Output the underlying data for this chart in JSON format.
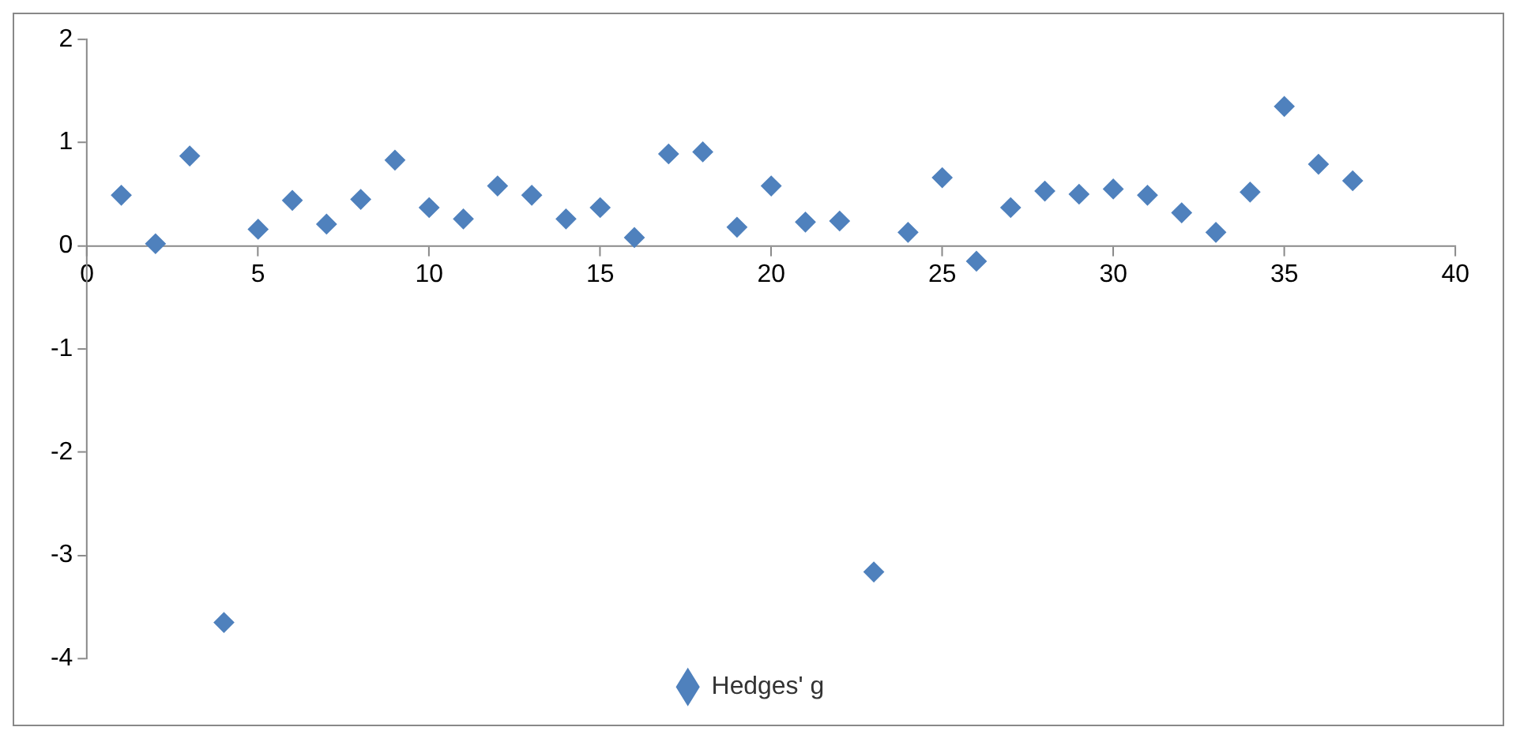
{
  "chart_data": {
    "type": "scatter",
    "x": [
      1,
      2,
      3,
      4,
      5,
      6,
      7,
      8,
      9,
      10,
      11,
      12,
      13,
      14,
      15,
      16,
      17,
      18,
      19,
      20,
      21,
      22,
      23,
      24,
      25,
      26,
      27,
      28,
      29,
      30,
      31,
      32,
      33,
      34,
      35,
      36,
      37
    ],
    "series": [
      {
        "name": "Hedges' g",
        "color": "#4f81bd",
        "values": [
          0.49,
          0.02,
          0.87,
          -3.65,
          0.16,
          0.44,
          0.21,
          0.45,
          0.83,
          0.37,
          0.26,
          0.58,
          0.49,
          0.26,
          0.37,
          0.08,
          0.89,
          0.91,
          0.18,
          0.58,
          0.23,
          0.24,
          -3.16,
          0.13,
          0.66,
          -0.15,
          0.37,
          0.53,
          0.5,
          0.55,
          0.49,
          0.32,
          0.13,
          0.52,
          1.35,
          0.79,
          0.63
        ]
      }
    ],
    "xlim": [
      0,
      40
    ],
    "xticks": [
      0,
      5,
      10,
      15,
      20,
      25,
      30,
      35,
      40
    ],
    "ylim": [
      -4,
      2
    ],
    "yticks": [
      -4,
      -3,
      -2,
      -1,
      0,
      1,
      2
    ],
    "marker": "diamond",
    "grid": false,
    "legend": "bottom"
  }
}
